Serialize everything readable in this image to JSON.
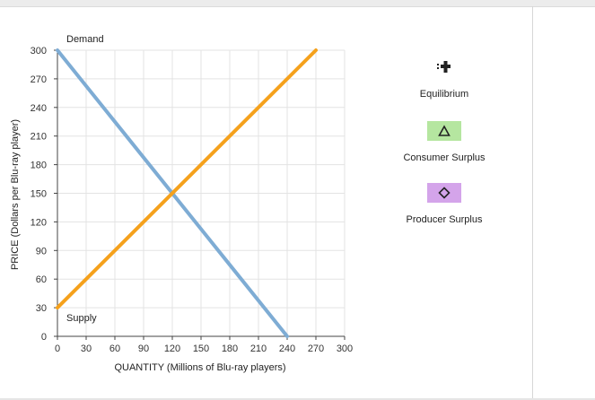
{
  "chart_data": {
    "type": "line",
    "xlabel": "QUANTITY (Millions of Blu-ray players)",
    "ylabel": "PRICE (Dollars per Blu-ray player)",
    "xlim": [
      0,
      300
    ],
    "ylim": [
      0,
      300
    ],
    "xticks": [
      0,
      30,
      60,
      90,
      120,
      150,
      180,
      210,
      240,
      270,
      300
    ],
    "yticks": [
      0,
      30,
      60,
      90,
      120,
      150,
      180,
      210,
      240,
      270,
      300
    ],
    "grid": true,
    "series": [
      {
        "name": "Demand",
        "color": "#7eacd4",
        "x": [
          0,
          240
        ],
        "y": [
          300,
          0
        ]
      },
      {
        "name": "Supply",
        "color": "#f5a11c",
        "x": [
          0,
          270
        ],
        "y": [
          30,
          300
        ]
      }
    ]
  },
  "legend": {
    "equilibrium_label": "Equilibrium",
    "equilibrium_icon": "plus-cross-icon",
    "consumer_surplus_label": "Consumer Surplus",
    "consumer_surplus_icon": "triangle-icon",
    "consumer_surplus_color": "#b5e6a0",
    "producer_surplus_label": "Producer Surplus",
    "producer_surplus_icon": "diamond-icon",
    "producer_surplus_color": "#d4a4ea"
  }
}
